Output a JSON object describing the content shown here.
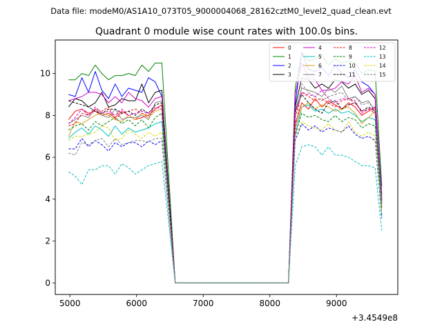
{
  "figure": {
    "suptitle": "Data file: modeM0/AS1A10_073T05_9000004068_28162cztM0_level2_quad_clean.evt",
    "offset_label": "+3.4549e8"
  },
  "chart_data": {
    "type": "line",
    "title": "Quadrant 0 module wise count rates with 100.0s bins.",
    "xlabel": "",
    "ylabel": "",
    "x_offset": 345490000,
    "xlim": [
      4780,
      9920
    ],
    "ylim": [
      -0.55,
      11.6
    ],
    "xticks": [
      5000,
      6000,
      7000,
      8000,
      9000
    ],
    "xtick_labels": [
      "5000",
      "6000",
      "7000",
      "8000",
      "9000"
    ],
    "yticks": [
      0,
      2,
      4,
      6,
      8,
      10
    ],
    "ytick_labels": [
      "0",
      "2",
      "4",
      "6",
      "8",
      "10"
    ],
    "grid": false,
    "legend_position": "top-right",
    "x": [
      4980,
      5080,
      5180,
      5280,
      5380,
      5480,
      5580,
      5680,
      5780,
      5880,
      5980,
      6080,
      6180,
      6280,
      6380,
      6580,
      6680,
      6780,
      6880,
      6980,
      7080,
      7180,
      7280,
      7380,
      7480,
      7580,
      7680,
      7780,
      7880,
      7980,
      8080,
      8180,
      8280,
      8380,
      8480,
      8580,
      8680,
      8780,
      8880,
      8980,
      9080,
      9180,
      9280,
      9380,
      9480,
      9580,
      9680
    ],
    "series": [
      {
        "name": "0",
        "color": "#ff0000",
        "dash": "solid",
        "values": [
          7.8,
          8.2,
          8.3,
          8.1,
          8.2,
          8.0,
          8.1,
          7.9,
          8.2,
          8.0,
          7.8,
          7.9,
          8.0,
          8.3,
          8.5,
          0,
          0,
          0,
          0,
          0,
          0,
          0,
          0,
          0,
          0,
          0,
          0,
          0,
          0,
          0,
          0,
          0,
          0,
          7.6,
          8.6,
          8.3,
          8.8,
          8.4,
          8.7,
          8.5,
          8.3,
          8.6,
          8.4,
          8.0,
          8.2,
          8.4,
          3.6
        ]
      },
      {
        "name": "1",
        "color": "#008000",
        "dash": "solid",
        "values": [
          9.7,
          9.7,
          10.0,
          9.9,
          10.4,
          10.0,
          9.7,
          9.9,
          9.9,
          10.0,
          9.9,
          10.4,
          10.1,
          10.5,
          10.5,
          0,
          0,
          0,
          0,
          0,
          0,
          0,
          0,
          0,
          0,
          0,
          0,
          0,
          0,
          0,
          0,
          0,
          0,
          9.3,
          11.0,
          10.6,
          10.7,
          10.9,
          10.4,
          10.7,
          10.5,
          10.6,
          10.5,
          10.0,
          10.2,
          10.1,
          4.6
        ]
      },
      {
        "name": "2",
        "color": "#0000ff",
        "dash": "solid",
        "values": [
          9.0,
          8.9,
          9.8,
          9.1,
          10.1,
          9.2,
          8.8,
          9.5,
          8.9,
          9.3,
          9.2,
          9.1,
          9.8,
          9.6,
          8.9,
          0,
          0,
          0,
          0,
          0,
          0,
          0,
          0,
          0,
          0,
          0,
          0,
          0,
          0,
          0,
          0,
          0,
          0,
          8.5,
          11.0,
          10.2,
          10.1,
          10.3,
          9.9,
          10.4,
          10.0,
          9.8,
          10.2,
          9.6,
          9.4,
          9.0,
          4.2
        ]
      },
      {
        "name": "3",
        "color": "#000000",
        "dash": "solid",
        "values": [
          8.4,
          8.8,
          8.7,
          8.4,
          8.6,
          9.1,
          8.4,
          8.5,
          8.8,
          8.7,
          8.7,
          9.5,
          8.6,
          9.1,
          9.2,
          0,
          0,
          0,
          0,
          0,
          0,
          0,
          0,
          0,
          0,
          0,
          0,
          0,
          0,
          0,
          0,
          0,
          0,
          8.4,
          9.8,
          9.7,
          9.3,
          9.5,
          9.3,
          9.7,
          9.6,
          9.3,
          9.5,
          9.0,
          9.2,
          8.8,
          4.0
        ]
      },
      {
        "name": "4",
        "color": "#cc00cc",
        "dash": "solid",
        "values": [
          8.7,
          8.8,
          8.9,
          9.1,
          9.1,
          9.0,
          8.6,
          8.9,
          8.6,
          9.1,
          8.8,
          8.7,
          8.4,
          8.8,
          8.9,
          0,
          0,
          0,
          0,
          0,
          0,
          0,
          0,
          0,
          0,
          0,
          0,
          0,
          0,
          0,
          0,
          0,
          0,
          9.0,
          10.5,
          9.8,
          9.7,
          9.2,
          9.2,
          9.3,
          9.6,
          9.5,
          9.9,
          9.1,
          9.3,
          9.0,
          4.0
        ]
      },
      {
        "name": "5",
        "color": "#00bfbf",
        "dash": "solid",
        "values": [
          6.9,
          7.2,
          7.4,
          7.1,
          7.5,
          7.3,
          7.0,
          7.5,
          7.1,
          7.4,
          7.2,
          7.3,
          7.4,
          7.6,
          7.7,
          0,
          0,
          0,
          0,
          0,
          0,
          0,
          0,
          0,
          0,
          0,
          0,
          0,
          0,
          0,
          0,
          0,
          0,
          7.0,
          8.4,
          8.5,
          8.2,
          8.3,
          8.1,
          8.3,
          8.1,
          8.2,
          8.0,
          7.7,
          7.9,
          7.8,
          3.2
        ]
      },
      {
        "name": "6",
        "color": "#d4a017",
        "dash": "solid",
        "values": [
          7.0,
          7.7,
          7.6,
          7.8,
          8.0,
          8.1,
          8.0,
          7.8,
          7.7,
          8.0,
          7.8,
          8.1,
          7.9,
          8.2,
          8.3,
          0,
          0,
          0,
          0,
          0,
          0,
          0,
          0,
          0,
          0,
          0,
          0,
          0,
          0,
          0,
          0,
          0,
          0,
          7.4,
          8.4,
          8.6,
          8.3,
          8.5,
          8.4,
          8.2,
          8.3,
          8.4,
          8.1,
          7.6,
          7.9,
          8.2,
          3.7
        ]
      },
      {
        "name": "7",
        "color": "#808080",
        "dash": "solid",
        "values": [
          7.6,
          7.8,
          8.0,
          7.9,
          8.3,
          8.0,
          7.9,
          8.3,
          7.8,
          7.9,
          7.9,
          8.0,
          7.8,
          8.6,
          8.7,
          0,
          0,
          0,
          0,
          0,
          0,
          0,
          0,
          0,
          0,
          0,
          0,
          0,
          0,
          0,
          0,
          0,
          0,
          8.2,
          9.3,
          9.2,
          9.1,
          8.9,
          9.3,
          9.1,
          9.4,
          8.8,
          8.9,
          8.6,
          8.7,
          8.2,
          3.9
        ]
      },
      {
        "name": "8",
        "color": "#ff0000",
        "dash": "dashed",
        "values": [
          7.5,
          7.6,
          8.1,
          8.0,
          8.3,
          8.2,
          8.4,
          7.8,
          8.1,
          8.2,
          8.3,
          8.1,
          8.0,
          8.3,
          8.5,
          0,
          0,
          0,
          0,
          0,
          0,
          0,
          0,
          0,
          0,
          0,
          0,
          0,
          0,
          0,
          0,
          0,
          0,
          7.9,
          9.1,
          8.9,
          8.7,
          8.8,
          8.6,
          8.4,
          8.7,
          8.8,
          8.6,
          8.2,
          8.3,
          8.1,
          3.8
        ]
      },
      {
        "name": "9",
        "color": "#008000",
        "dash": "dashed",
        "values": [
          7.3,
          7.5,
          7.6,
          7.3,
          7.7,
          7.5,
          7.7,
          7.9,
          7.6,
          7.8,
          7.5,
          7.8,
          7.4,
          7.9,
          8.1,
          0,
          0,
          0,
          0,
          0,
          0,
          0,
          0,
          0,
          0,
          0,
          0,
          0,
          0,
          0,
          0,
          0,
          0,
          7.1,
          8.1,
          7.9,
          8.0,
          7.8,
          7.7,
          8.0,
          7.7,
          7.9,
          7.8,
          7.4,
          7.6,
          7.5,
          3.5
        ]
      },
      {
        "name": "10",
        "color": "#0000ff",
        "dash": "dashed",
        "values": [
          6.4,
          6.4,
          6.9,
          6.5,
          6.8,
          6.6,
          6.3,
          6.7,
          6.5,
          6.7,
          6.7,
          6.5,
          6.8,
          6.6,
          6.8,
          0,
          0,
          0,
          0,
          0,
          0,
          0,
          0,
          0,
          0,
          0,
          0,
          0,
          0,
          0,
          0,
          0,
          0,
          6.8,
          7.6,
          7.3,
          7.5,
          7.2,
          7.4,
          7.3,
          7.2,
          7.5,
          7.1,
          6.9,
          7.0,
          6.8,
          3.1
        ]
      },
      {
        "name": "11",
        "color": "#000000",
        "dash": "dashed",
        "values": [
          8.7,
          8.6,
          8.5,
          8.4,
          8.2,
          8.1,
          8.3,
          8.3,
          8.1,
          8.2,
          8.0,
          8.3,
          8.1,
          8.5,
          8.6,
          0,
          0,
          0,
          0,
          0,
          0,
          0,
          0,
          0,
          0,
          0,
          0,
          0,
          0,
          0,
          0,
          0,
          0,
          8.2,
          9.0,
          8.6,
          8.3,
          8.1,
          8.6,
          8.7,
          8.3,
          8.5,
          8.6,
          8.2,
          8.4,
          8.2,
          3.9
        ]
      },
      {
        "name": "12",
        "color": "#cc00cc",
        "dash": "dashed",
        "values": [
          7.6,
          7.9,
          8.3,
          8.0,
          8.4,
          8.1,
          8.2,
          8.0,
          8.3,
          8.0,
          8.1,
          8.2,
          8.1,
          8.4,
          8.3,
          0,
          0,
          0,
          0,
          0,
          0,
          0,
          0,
          0,
          0,
          0,
          0,
          0,
          0,
          0,
          0,
          0,
          0,
          8.1,
          9.1,
          9.0,
          8.9,
          9.2,
          8.8,
          8.6,
          8.8,
          8.8,
          8.7,
          8.1,
          8.3,
          8.4,
          3.8
        ]
      },
      {
        "name": "13",
        "color": "#00bfbf",
        "dash": "dashed",
        "values": [
          5.3,
          5.1,
          4.7,
          5.4,
          5.4,
          5.6,
          5.6,
          5.2,
          5.7,
          5.5,
          5.2,
          5.4,
          5.6,
          5.7,
          5.8,
          0,
          0,
          0,
          0,
          0,
          0,
          0,
          0,
          0,
          0,
          0,
          0,
          0,
          0,
          0,
          0,
          0,
          0,
          5.6,
          6.5,
          6.6,
          6.5,
          6.1,
          6.5,
          6.1,
          6.1,
          6.0,
          5.8,
          5.6,
          5.6,
          5.5,
          2.5
        ]
      },
      {
        "name": "14",
        "color": "#d4d400",
        "dash": "dashed",
        "values": [
          6.8,
          7.0,
          7.0,
          7.1,
          7.2,
          7.5,
          7.4,
          6.8,
          6.9,
          7.3,
          7.1,
          6.9,
          7.2,
          7.0,
          7.2,
          0,
          0,
          0,
          0,
          0,
          0,
          0,
          0,
          0,
          0,
          0,
          0,
          0,
          0,
          0,
          0,
          0,
          0,
          7.0,
          7.7,
          7.5,
          7.4,
          7.3,
          7.6,
          7.3,
          7.2,
          7.7,
          7.2,
          7.0,
          7.2,
          7.0,
          3.3
        ]
      },
      {
        "name": "15",
        "color": "#808080",
        "dash": "dashed",
        "values": [
          6.2,
          6.1,
          6.7,
          6.6,
          6.8,
          6.9,
          6.5,
          6.9,
          6.6,
          6.7,
          6.8,
          6.8,
          6.7,
          6.9,
          6.9,
          0,
          0,
          0,
          0,
          0,
          0,
          0,
          0,
          0,
          0,
          0,
          0,
          0,
          0,
          0,
          0,
          0,
          0,
          7.1,
          9.5,
          9.1,
          8.9,
          8.7,
          8.9,
          9.0,
          9.1,
          8.7,
          8.9,
          8.5,
          8.6,
          8.3,
          3.8
        ]
      }
    ]
  }
}
